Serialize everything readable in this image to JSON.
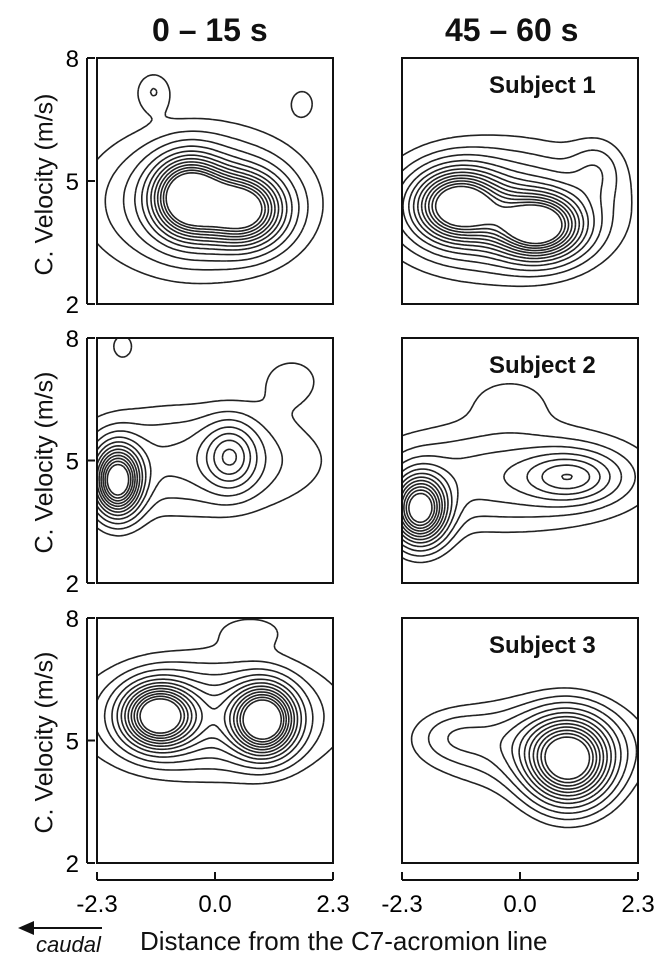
{
  "columns": [
    "0 – 15 s",
    "45 – 60 s"
  ],
  "ylabel": "C. Velocity (m/s)",
  "xlabel": "Distance from the C7-acromion line",
  "direction_label": "caudal",
  "chart_data": {
    "type": "contour",
    "x_ticks": [
      "-2.3",
      "0.0",
      "2.3"
    ],
    "y_ticks": [
      "2",
      "5",
      "8"
    ],
    "xlim": [
      -2.3,
      2.3
    ],
    "ylim": [
      2,
      8
    ],
    "panels": [
      {
        "subject": "",
        "column": "0 – 15 s",
        "peaks": [
          {
            "x": -0.5,
            "y": 4.6,
            "amp": 1.0,
            "sx": 0.45,
            "sy": 0.6
          },
          {
            "x": 0.55,
            "y": 4.3,
            "amp": 0.9,
            "sx": 0.5,
            "sy": 0.55
          },
          {
            "x": -0.3,
            "y": 4.5,
            "amp": 0.35,
            "sx": 1.3,
            "sy": 1.1
          },
          {
            "x": -1.2,
            "y": 7.2,
            "amp": 0.12,
            "sx": 0.25,
            "sy": 0.35
          },
          {
            "x": 1.7,
            "y": 6.9,
            "amp": 0.1,
            "sx": 0.2,
            "sy": 0.3
          }
        ]
      },
      {
        "subject": "Subject 1",
        "column": "45 – 60 s",
        "peaks": [
          {
            "x": -1.2,
            "y": 4.4,
            "amp": 0.95,
            "sx": 0.55,
            "sy": 0.55
          },
          {
            "x": 0.35,
            "y": 3.9,
            "amp": 1.0,
            "sx": 0.55,
            "sy": 0.5
          },
          {
            "x": -0.4,
            "y": 4.3,
            "amp": 0.35,
            "sx": 1.4,
            "sy": 1.0
          },
          {
            "x": 1.5,
            "y": 5.3,
            "amp": 0.12,
            "sx": 0.35,
            "sy": 0.5
          }
        ]
      },
      {
        "subject": "",
        "column": "0 – 15 s",
        "peaks": [
          {
            "x": -1.9,
            "y": 4.5,
            "amp": 1.0,
            "sx": 0.3,
            "sy": 0.55
          },
          {
            "x": 0.3,
            "y": 5.1,
            "amp": 0.35,
            "sx": 0.35,
            "sy": 0.55
          },
          {
            "x": -0.5,
            "y": 5.0,
            "amp": 0.22,
            "sx": 1.7,
            "sy": 0.9
          },
          {
            "x": -1.8,
            "y": 7.8,
            "amp": 0.1,
            "sx": 0.2,
            "sy": 0.3
          },
          {
            "x": 1.5,
            "y": 7.0,
            "amp": 0.09,
            "sx": 0.5,
            "sy": 0.5
          }
        ]
      },
      {
        "subject": "Subject 2",
        "column": "45 – 60 s",
        "peaks": [
          {
            "x": -1.95,
            "y": 3.8,
            "amp": 1.0,
            "sx": 0.35,
            "sy": 0.55
          },
          {
            "x": 1.0,
            "y": 4.6,
            "amp": 0.33,
            "sx": 0.6,
            "sy": 0.4
          },
          {
            "x": -0.3,
            "y": 4.6,
            "amp": 0.25,
            "sx": 1.8,
            "sy": 0.85
          },
          {
            "x": -0.2,
            "y": 6.5,
            "amp": 0.09,
            "sx": 0.6,
            "sy": 0.45
          }
        ]
      },
      {
        "subject": "",
        "column": "0 – 15 s",
        "peaks": [
          {
            "x": -1.1,
            "y": 5.6,
            "amp": 0.95,
            "sx": 0.45,
            "sy": 0.5
          },
          {
            "x": 0.95,
            "y": 5.5,
            "amp": 1.0,
            "sx": 0.4,
            "sy": 0.55
          },
          {
            "x": -0.1,
            "y": 5.6,
            "amp": 0.35,
            "sx": 1.5,
            "sy": 0.9
          },
          {
            "x": 0.7,
            "y": 7.7,
            "amp": 0.09,
            "sx": 0.5,
            "sy": 0.3
          }
        ]
      },
      {
        "subject": "Subject 3",
        "column": "45 – 60 s",
        "peaks": [
          {
            "x": 0.95,
            "y": 4.5,
            "amp": 1.0,
            "sx": 0.55,
            "sy": 0.7
          },
          {
            "x": 0.3,
            "y": 4.9,
            "amp": 0.25,
            "sx": 1.3,
            "sy": 0.7
          },
          {
            "x": -1.3,
            "y": 5.1,
            "amp": 0.1,
            "sx": 0.5,
            "sy": 0.4
          }
        ]
      }
    ]
  }
}
